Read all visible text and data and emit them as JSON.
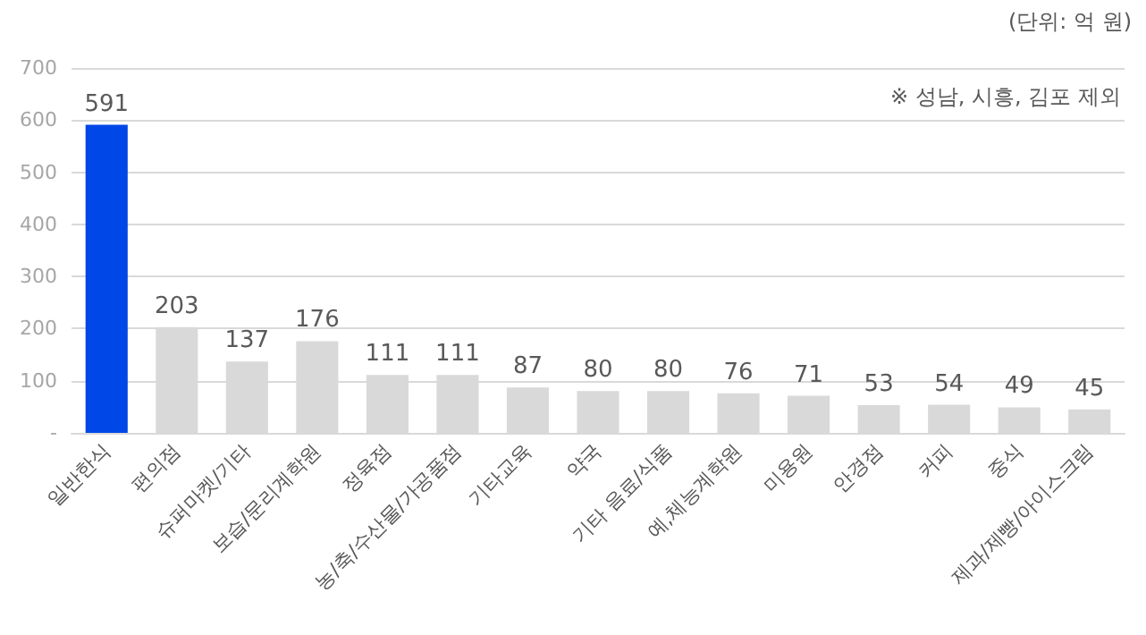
{
  "chart_data": {
    "type": "bar",
    "categories": [
      "일반한식",
      "편의점",
      "슈퍼마켓/기타",
      "보습/문리계학원",
      "정육점",
      "농/축/수산물/가공품점",
      "기타교육",
      "약국",
      "기타 음료/식품",
      "예,체능계학원",
      "미용원",
      "안경점",
      "커피",
      "중식",
      "제과/제빵/아이스크림"
    ],
    "values": [
      591,
      203,
      137,
      176,
      111,
      111,
      87,
      80,
      80,
      76,
      71,
      53,
      54,
      49,
      45
    ],
    "colors": [
      "#0047e8",
      "#d9d9d9",
      "#d9d9d9",
      "#d9d9d9",
      "#d9d9d9",
      "#d9d9d9",
      "#d9d9d9",
      "#d9d9d9",
      "#d9d9d9",
      "#d9d9d9",
      "#d9d9d9",
      "#d9d9d9",
      "#d9d9d9",
      "#d9d9d9",
      "#d9d9d9"
    ],
    "ylim": [
      0,
      700
    ],
    "yticks": [
      {
        "value": 0,
        "label": "-"
      },
      100,
      200,
      300,
      400,
      500,
      600,
      700
    ],
    "grid": "y",
    "data_labels": true,
    "annotations": [
      "(단위: 억 원)",
      "※ 성남, 시흥, 김포 제외"
    ]
  }
}
